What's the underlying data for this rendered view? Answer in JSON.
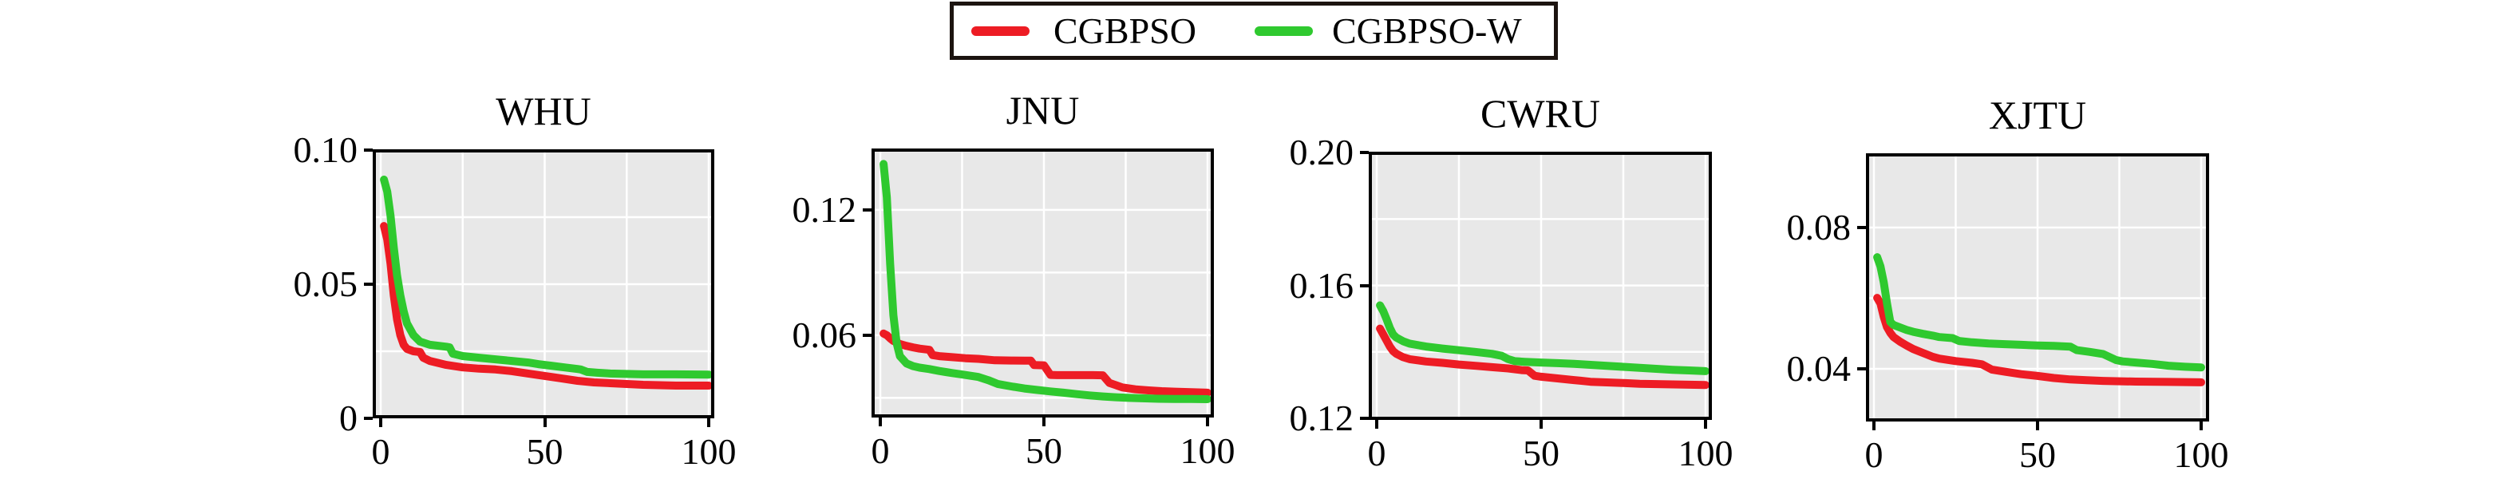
{
  "figure": {
    "background": "#ffffff"
  },
  "styles": {
    "plot_bg": "#e8e8e8",
    "grid_color": "#ffffff",
    "spine_color": "#000000",
    "text_color": "#000000",
    "line_width": 10
  },
  "legend": {
    "items": [
      {
        "label": "CGBPSO",
        "color": "#ed1c24"
      },
      {
        "label": "CGBPSO-W",
        "color": "#2fc92f"
      }
    ]
  },
  "chart_data": [
    {
      "type": "line",
      "title": "WHU",
      "xlim": [
        -2.43,
        101.7
      ],
      "ylim": [
        0,
        0.1003
      ],
      "grid": true,
      "legend_position": "figure-top",
      "xticks": [
        {
          "value": 0,
          "label": "0"
        },
        {
          "value": 50,
          "label": "50"
        },
        {
          "value": 100,
          "label": "100"
        }
      ],
      "yticks": [
        {
          "value": 0.1,
          "label": "0.10"
        },
        {
          "value": 0.05,
          "label": "0.05"
        },
        {
          "value": 0,
          "label": "0"
        }
      ],
      "xgrid": [
        0,
        25,
        50,
        75,
        100
      ],
      "ygrid": [
        0.025,
        0.05,
        0.075
      ],
      "series": [
        {
          "name": "CGBPSO",
          "color": "#ed1c24",
          "x": [
            1,
            2,
            3,
            4,
            5,
            6,
            7,
            8,
            10,
            12,
            13,
            15,
            18,
            20,
            25,
            30,
            35,
            40,
            45,
            50,
            55,
            60,
            65,
            70,
            75,
            80,
            90,
            100
          ],
          "y": [
            0.0717,
            0.0667,
            0.0577,
            0.0458,
            0.0369,
            0.031,
            0.0274,
            0.0259,
            0.025,
            0.0247,
            0.0226,
            0.0214,
            0.0205,
            0.0199,
            0.019,
            0.0185,
            0.0182,
            0.0176,
            0.0167,
            0.0158,
            0.0149,
            0.014,
            0.0134,
            0.0131,
            0.0128,
            0.0125,
            0.0122,
            0.0122
          ]
        },
        {
          "name": "CGBPSO-W",
          "color": "#2fc92f",
          "x": [
            1,
            2,
            3,
            4,
            5,
            6,
            7,
            8,
            10,
            12,
            15,
            20,
            21,
            22,
            25,
            30,
            35,
            40,
            45,
            48,
            52,
            56,
            60,
            61,
            63,
            66,
            70,
            80,
            90,
            100
          ],
          "y": [
            0.089,
            0.0845,
            0.0756,
            0.0637,
            0.0533,
            0.0458,
            0.0399,
            0.0354,
            0.031,
            0.0286,
            0.0274,
            0.0267,
            0.0265,
            0.0241,
            0.0232,
            0.0226,
            0.022,
            0.0214,
            0.0208,
            0.0202,
            0.0196,
            0.019,
            0.0184,
            0.0182,
            0.0173,
            0.017,
            0.0167,
            0.0164,
            0.0164,
            0.0163
          ]
        }
      ]
    },
    {
      "type": "line",
      "title": "JNU",
      "xlim": [
        -2.68,
        101.95
      ],
      "ylim": [
        0.0206,
        0.1494
      ],
      "grid": true,
      "xticks": [
        {
          "value": 0,
          "label": "0"
        },
        {
          "value": 50,
          "label": "50"
        },
        {
          "value": 100,
          "label": "100"
        }
      ],
      "yticks": [
        {
          "value": 0.12,
          "label": "0.12"
        },
        {
          "value": 0.06,
          "label": "0.06"
        }
      ],
      "xgrid": [
        0,
        25,
        50,
        75,
        100
      ],
      "ygrid": [
        0.03,
        0.06,
        0.09,
        0.12
      ],
      "series": [
        {
          "name": "CGBPSO",
          "color": "#ed1c24",
          "x": [
            1,
            2,
            3,
            4,
            5,
            6,
            8,
            10,
            12,
            15,
            16,
            18,
            22,
            26,
            30,
            35,
            40,
            44,
            46,
            47,
            50,
            52,
            54,
            60,
            65,
            68,
            70,
            74,
            78,
            82,
            86,
            90,
            95,
            100
          ],
          "y": [
            0.0608,
            0.06,
            0.0585,
            0.0573,
            0.0566,
            0.0558,
            0.0549,
            0.0542,
            0.0536,
            0.053,
            0.0505,
            0.05,
            0.0495,
            0.049,
            0.0487,
            0.048,
            0.0479,
            0.0478,
            0.0478,
            0.0457,
            0.0456,
            0.041,
            0.0409,
            0.0409,
            0.0409,
            0.0408,
            0.0372,
            0.035,
            0.0341,
            0.0336,
            0.0332,
            0.033,
            0.0327,
            0.0325
          ]
        },
        {
          "name": "CGBPSO-W",
          "color": "#2fc92f",
          "x": [
            1,
            2,
            3,
            4,
            5,
            6,
            8,
            10,
            12,
            15,
            18,
            20,
            22,
            25,
            28,
            30,
            33,
            36,
            40,
            44,
            48,
            52,
            56,
            60,
            64,
            68,
            72,
            76,
            80,
            85,
            90,
            95,
            100
          ],
          "y": [
            0.142,
            0.126,
            0.0944,
            0.0696,
            0.0562,
            0.05,
            0.0465,
            0.0452,
            0.0445,
            0.0438,
            0.0429,
            0.0424,
            0.0419,
            0.0412,
            0.0405,
            0.04,
            0.0385,
            0.0366,
            0.0355,
            0.0345,
            0.0338,
            0.0331,
            0.0325,
            0.0318,
            0.0312,
            0.0307,
            0.0303,
            0.03,
            0.0298,
            0.0296,
            0.0295,
            0.0295,
            0.0294
          ]
        }
      ]
    },
    {
      "type": "line",
      "title": "CWRU",
      "xlim": [
        -2.43,
        101.94
      ],
      "ylim": [
        0.1195,
        0.2003
      ],
      "grid": true,
      "xticks": [
        {
          "value": 0,
          "label": "0"
        },
        {
          "value": 50,
          "label": "50"
        },
        {
          "value": 100,
          "label": "100"
        }
      ],
      "yticks": [
        {
          "value": 0.2,
          "label": "0.20"
        },
        {
          "value": 0.16,
          "label": "0.16"
        },
        {
          "value": 0.12,
          "label": "0.12"
        }
      ],
      "xgrid": [
        0,
        25,
        50,
        75,
        100
      ],
      "ygrid": [
        0.14,
        0.16,
        0.18
      ],
      "series": [
        {
          "name": "CGBPSO",
          "color": "#ed1c24",
          "x": [
            1,
            2,
            3,
            4,
            5,
            6,
            8,
            10,
            15,
            20,
            25,
            30,
            35,
            40,
            44,
            46,
            48,
            50,
            55,
            60,
            62,
            65,
            70,
            75,
            80,
            85,
            90,
            95,
            100
          ],
          "y": [
            0.147,
            0.1452,
            0.1434,
            0.1416,
            0.1402,
            0.1394,
            0.1384,
            0.1378,
            0.1371,
            0.1367,
            0.1362,
            0.1358,
            0.1354,
            0.135,
            0.1345,
            0.1344,
            0.1328,
            0.1325,
            0.132,
            0.1315,
            0.1313,
            0.131,
            0.1308,
            0.1306,
            0.1304,
            0.1303,
            0.1302,
            0.1301,
            0.13
          ]
        },
        {
          "name": "CGBPSO-W",
          "color": "#2fc92f",
          "x": [
            1,
            2,
            3,
            4,
            5,
            6,
            8,
            10,
            15,
            20,
            25,
            30,
            35,
            38,
            40,
            42,
            45,
            50,
            55,
            60,
            65,
            70,
            75,
            80,
            85,
            90,
            95,
            100
          ],
          "y": [
            0.154,
            0.1522,
            0.1498,
            0.1472,
            0.1452,
            0.1443,
            0.1432,
            0.1425,
            0.1416,
            0.141,
            0.1405,
            0.14,
            0.1394,
            0.1388,
            0.1378,
            0.1372,
            0.137,
            0.1368,
            0.1366,
            0.1364,
            0.1361,
            0.1358,
            0.1355,
            0.1352,
            0.1349,
            0.1346,
            0.1344,
            0.1342
          ]
        }
      ]
    },
    {
      "type": "line",
      "title": "XJTU",
      "xlim": [
        -2.44,
        102.44
      ],
      "ylim": [
        0.0251,
        0.101
      ],
      "grid": true,
      "xticks": [
        {
          "value": 0,
          "label": "0"
        },
        {
          "value": 50,
          "label": "50"
        },
        {
          "value": 100,
          "label": "100"
        }
      ],
      "yticks": [
        {
          "value": 0.08,
          "label": "0.08"
        },
        {
          "value": 0.04,
          "label": "0.04"
        }
      ],
      "xgrid": [
        0,
        25,
        50,
        75,
        100
      ],
      "ygrid": [
        0.04,
        0.06,
        0.08
      ],
      "series": [
        {
          "name": "CGBPSO",
          "color": "#ed1c24",
          "x": [
            1,
            2,
            3,
            4,
            5,
            6,
            8,
            10,
            12,
            15,
            18,
            20,
            25,
            30,
            33,
            36,
            40,
            45,
            50,
            55,
            60,
            65,
            70,
            80,
            90,
            100
          ],
          "y": [
            0.0601,
            0.0585,
            0.0547,
            0.0518,
            0.0502,
            0.049,
            0.0477,
            0.0466,
            0.0456,
            0.0445,
            0.0434,
            0.0429,
            0.0422,
            0.0417,
            0.0413,
            0.0398,
            0.0392,
            0.0385,
            0.038,
            0.0374,
            0.037,
            0.0368,
            0.0366,
            0.0364,
            0.0363,
            0.0362
          ]
        },
        {
          "name": "CGBPSO-W",
          "color": "#2fc92f",
          "x": [
            1,
            2,
            3,
            4,
            5,
            6,
            8,
            10,
            12,
            15,
            18,
            20,
            24,
            26,
            30,
            35,
            40,
            45,
            50,
            55,
            60,
            62,
            66,
            70,
            74,
            76,
            80,
            85,
            90,
            95,
            100
          ],
          "y": [
            0.0716,
            0.069,
            0.0645,
            0.0585,
            0.0533,
            0.0524,
            0.0517,
            0.051,
            0.0505,
            0.0499,
            0.0494,
            0.049,
            0.0487,
            0.0479,
            0.0475,
            0.0472,
            0.047,
            0.0468,
            0.0466,
            0.0465,
            0.0463,
            0.0453,
            0.0448,
            0.0442,
            0.0425,
            0.0421,
            0.0418,
            0.0414,
            0.0409,
            0.0406,
            0.0404
          ]
        }
      ]
    }
  ]
}
